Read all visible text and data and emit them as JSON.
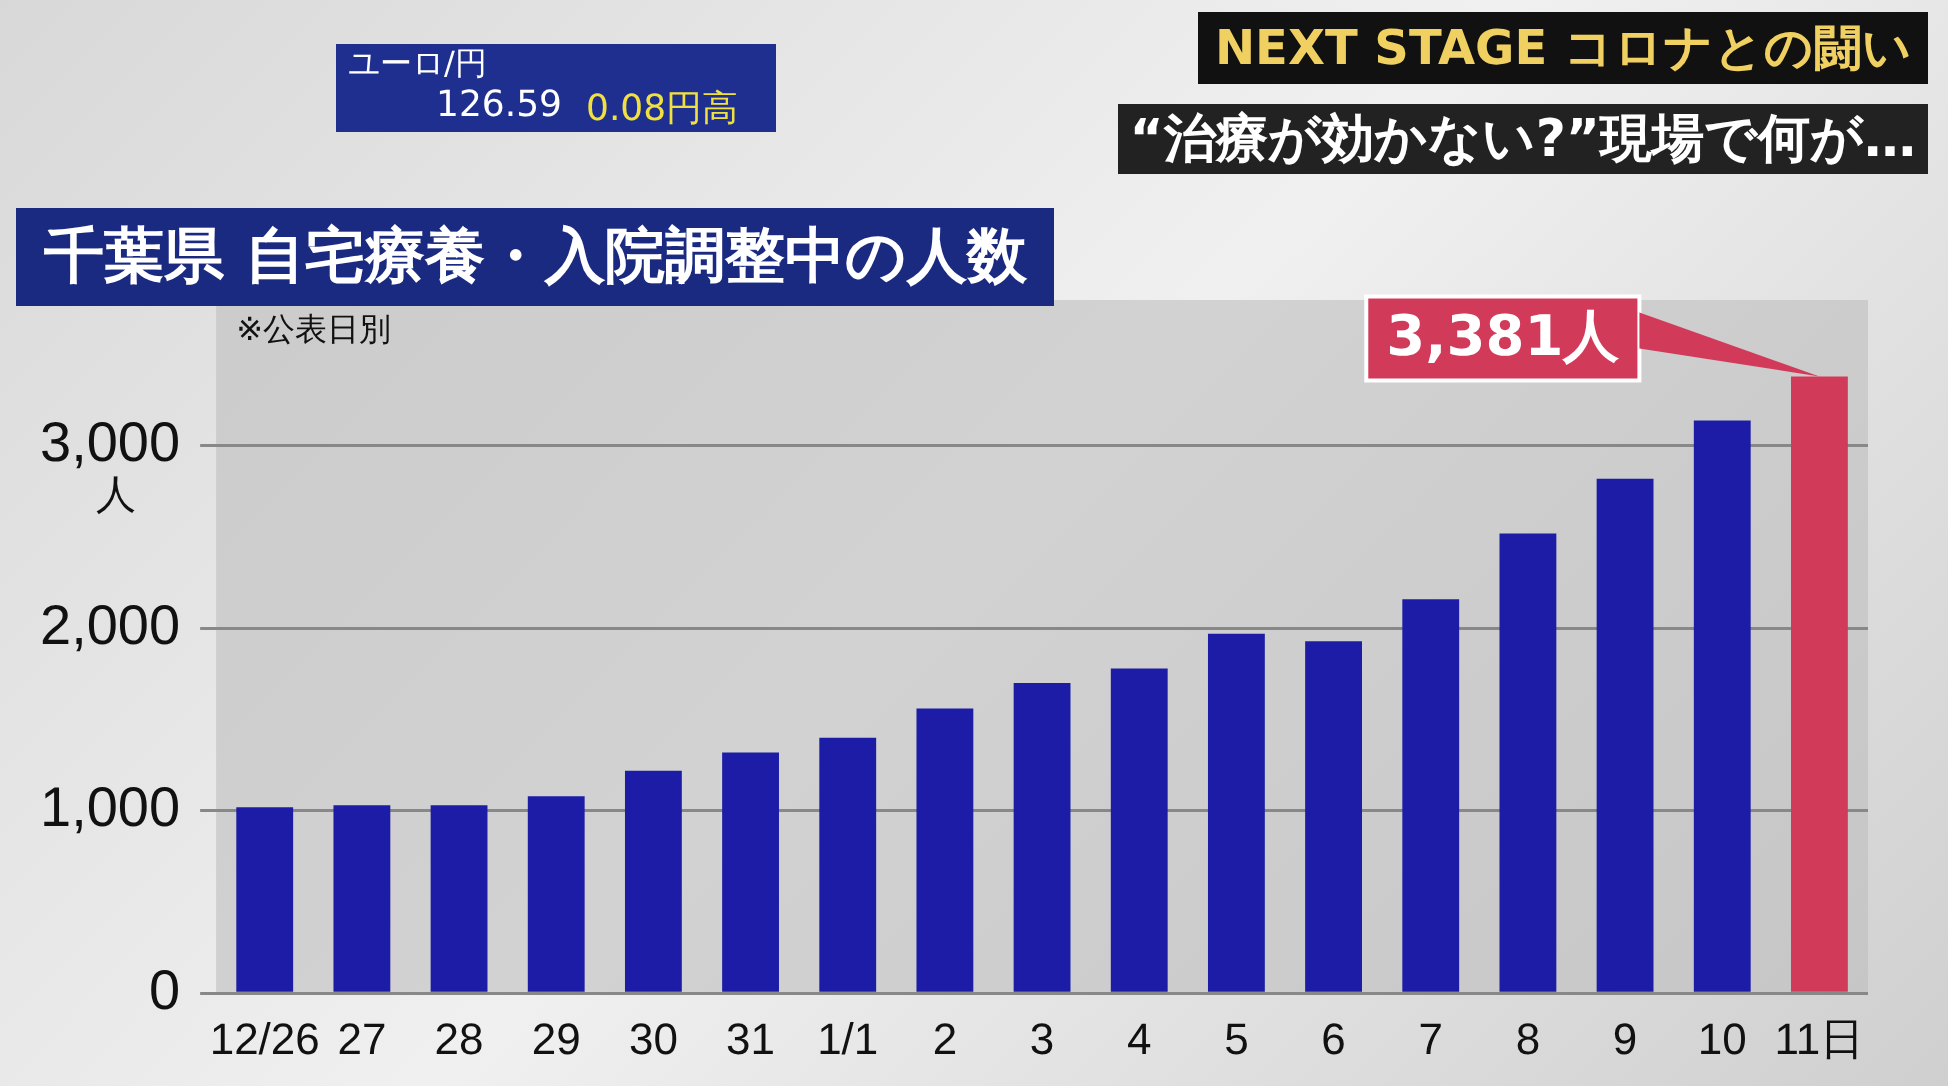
{
  "chart_data": {
    "type": "bar",
    "title": "千葉県 自宅療養・入院調整中の人数",
    "ylabel": "人",
    "categories": [
      "12/26",
      "27",
      "28",
      "29",
      "30",
      "31",
      "1/1",
      "2",
      "3",
      "4",
      "5",
      "6",
      "7",
      "8",
      "9",
      "10",
      "11日"
    ],
    "values": [
      1020,
      1030,
      1030,
      1080,
      1220,
      1320,
      1400,
      1560,
      1700,
      1780,
      1970,
      1930,
      2160,
      2520,
      2820,
      3140,
      3381
    ],
    "colors": [
      "#1c1ca6",
      "#1c1ca6",
      "#1c1ca6",
      "#1c1ca6",
      "#1c1ca6",
      "#1c1ca6",
      "#1c1ca6",
      "#1c1ca6",
      "#1c1ca6",
      "#1c1ca6",
      "#1c1ca6",
      "#1c1ca6",
      "#1c1ca6",
      "#1c1ca6",
      "#1c1ca6",
      "#1c1ca6",
      "#d23a5a"
    ],
    "ylim": [
      0,
      3800
    ],
    "yticks": [
      {
        "value": 0,
        "label": "0"
      },
      {
        "value": 1000,
        "label": "1,000"
      },
      {
        "value": 2000,
        "label": "2,000"
      },
      {
        "value": 3000,
        "label": "3,000"
      }
    ],
    "grid": "y",
    "legend": false,
    "annotations": [
      "※公表日別",
      {
        "text": "3,381人",
        "x": "11日",
        "y": 3381
      },
      "NEXT STAGE コロナとの闘い",
      "“治療が効かない?”現場で何が…",
      "ユーロ/円",
      "126.59",
      "0.08円高"
    ]
  }
}
